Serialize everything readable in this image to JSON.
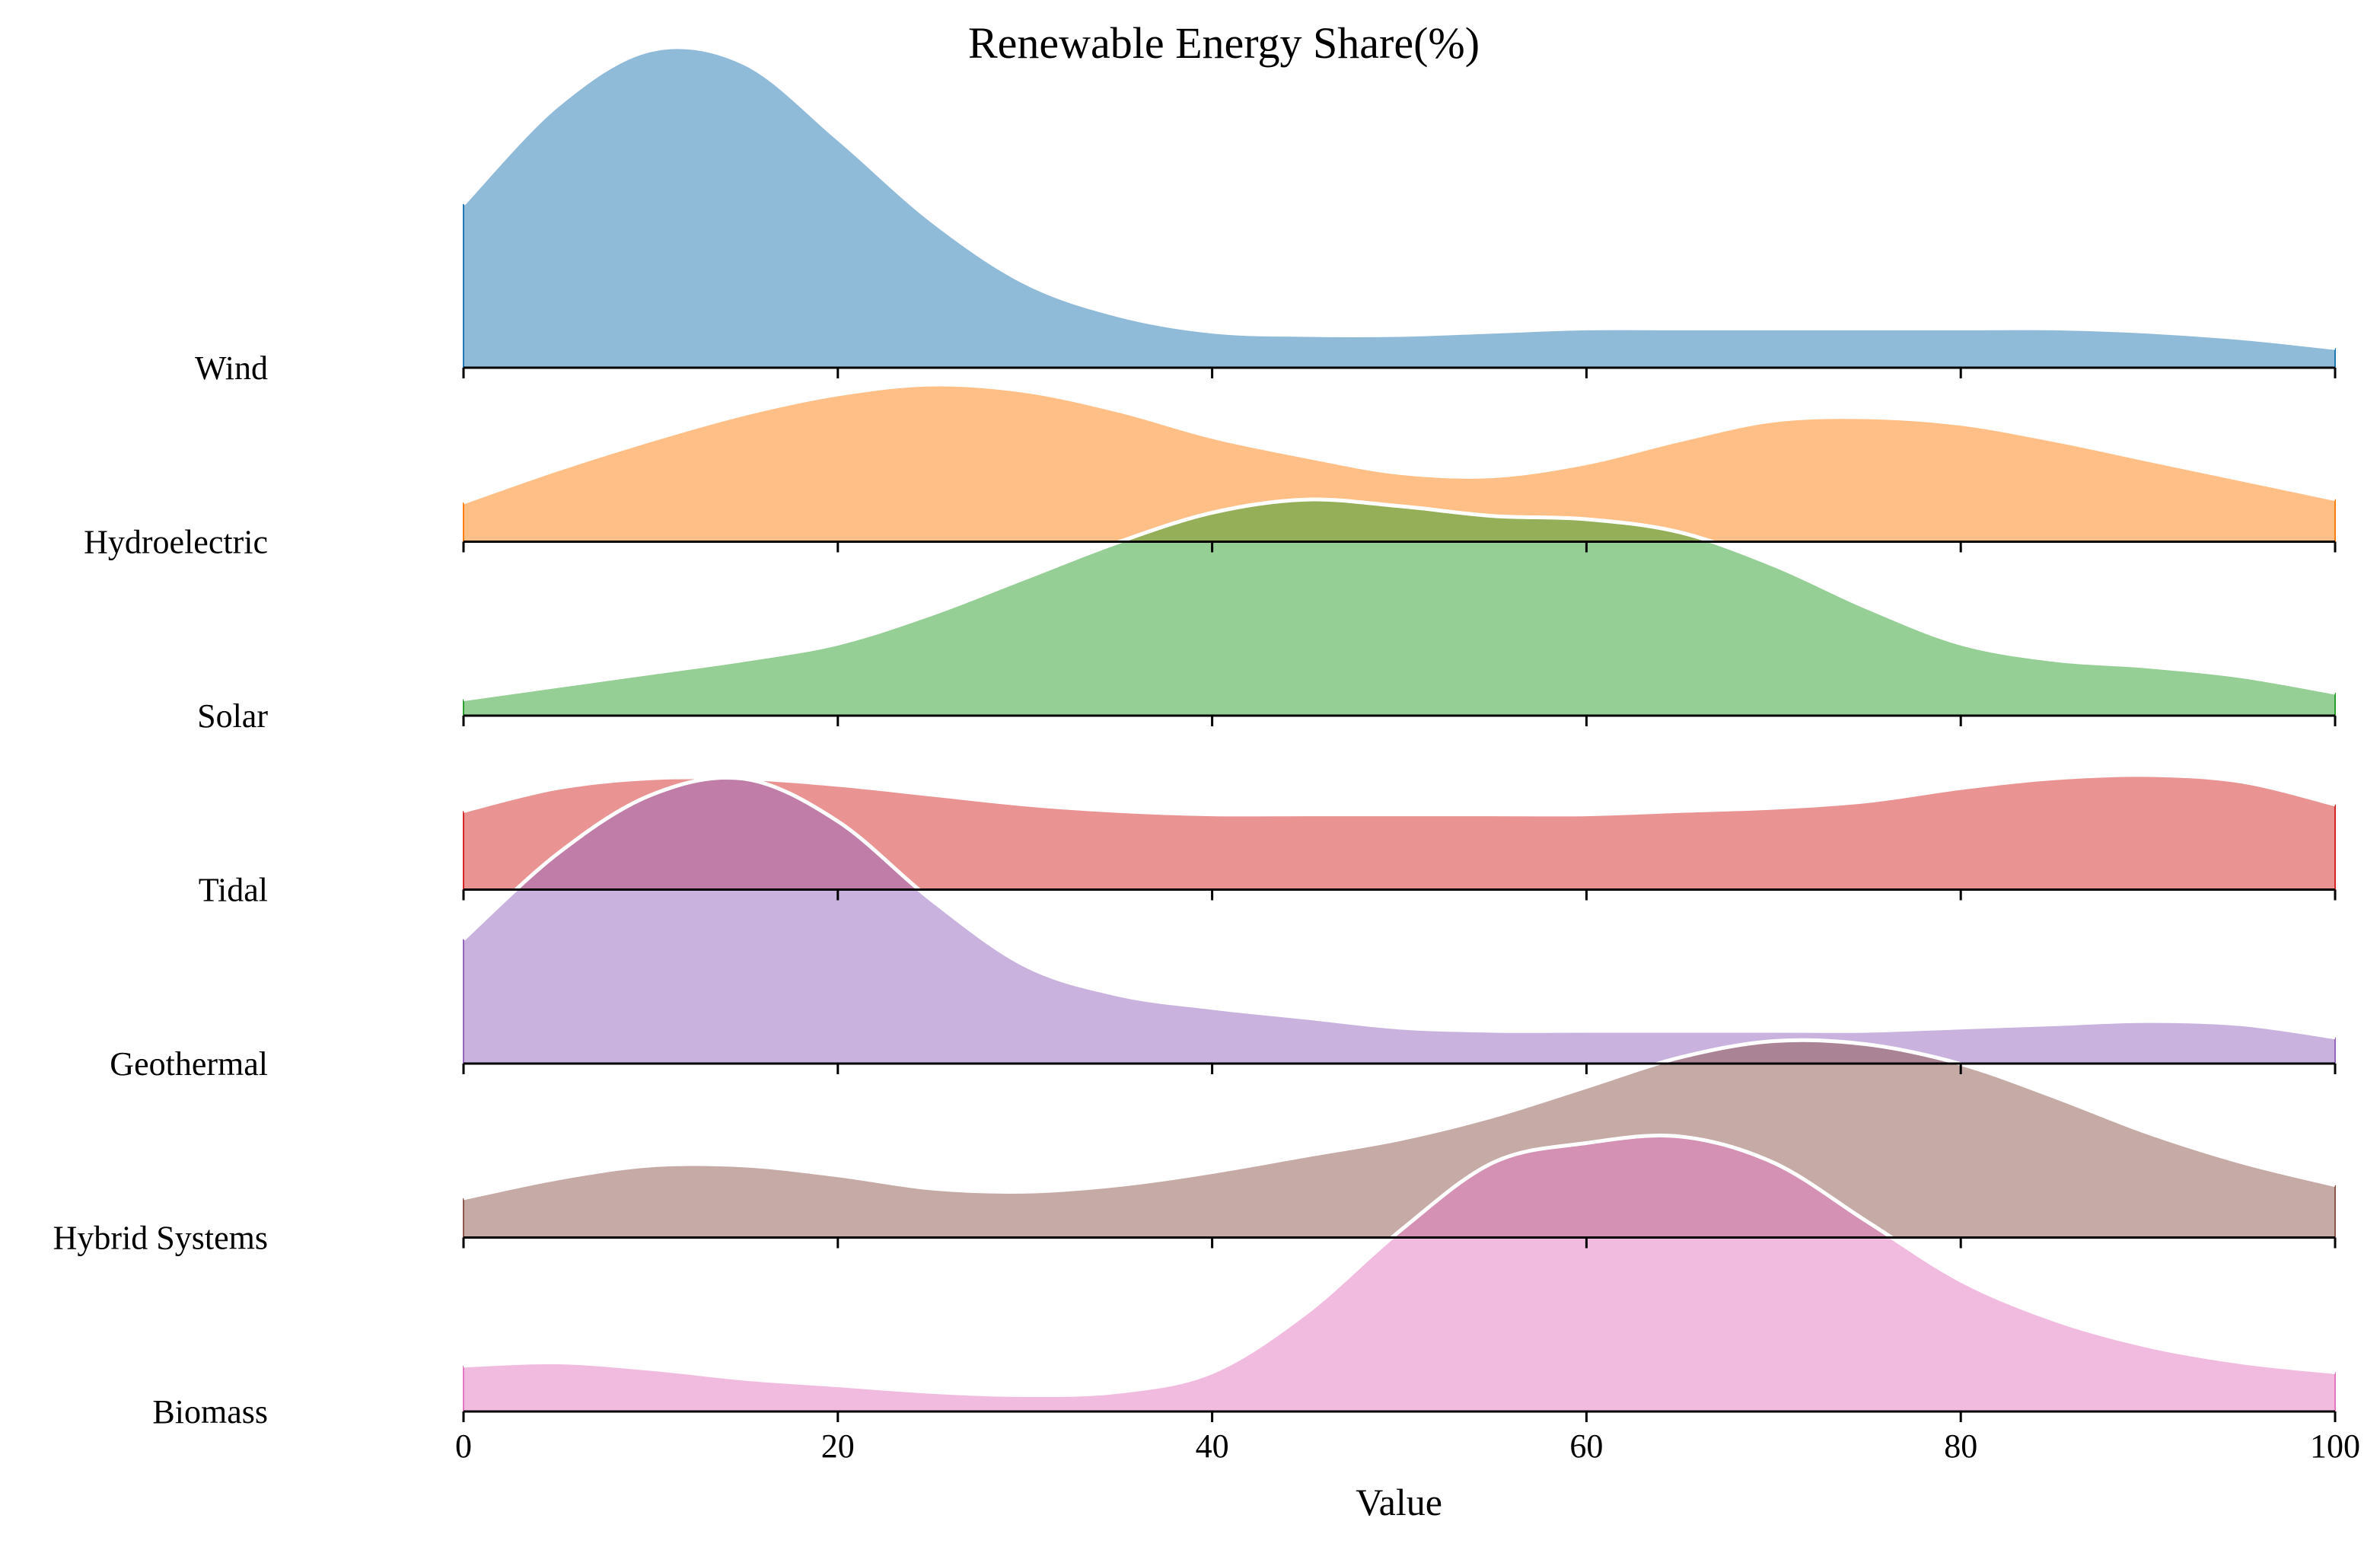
{
  "chart_data": {
    "type": "ridgeline",
    "title": "Renewable Energy Share(%)",
    "xlabel": "Value",
    "ylabel": "",
    "xlim": [
      0,
      100
    ],
    "xticks": [
      0,
      20,
      40,
      60,
      80,
      100
    ],
    "x": [
      0,
      5,
      10,
      15,
      20,
      25,
      30,
      35,
      40,
      45,
      50,
      55,
      60,
      65,
      70,
      75,
      80,
      85,
      90,
      95,
      100
    ],
    "series": [
      {
        "name": "Wind",
        "color": "#1f77b4",
        "values": [
          0.5,
          0.8,
          0.97,
          0.93,
          0.7,
          0.45,
          0.26,
          0.16,
          0.11,
          0.1,
          0.1,
          0.11,
          0.12,
          0.12,
          0.12,
          0.12,
          0.12,
          0.12,
          0.11,
          0.09,
          0.06
        ]
      },
      {
        "name": "Hydroelectric",
        "color": "#ff7f0e",
        "values": [
          0.12,
          0.22,
          0.31,
          0.39,
          0.45,
          0.48,
          0.46,
          0.4,
          0.32,
          0.26,
          0.21,
          0.2,
          0.24,
          0.31,
          0.37,
          0.38,
          0.36,
          0.31,
          0.25,
          0.19,
          0.13
        ]
      },
      {
        "name": "Solar",
        "color": "#2ca02c",
        "values": [
          0.05,
          0.09,
          0.13,
          0.17,
          0.22,
          0.31,
          0.42,
          0.53,
          0.62,
          0.66,
          0.64,
          0.61,
          0.6,
          0.56,
          0.46,
          0.33,
          0.22,
          0.17,
          0.15,
          0.12,
          0.07
        ]
      },
      {
        "name": "Tidal",
        "color": "#d62728",
        "values": [
          0.24,
          0.31,
          0.34,
          0.34,
          0.32,
          0.29,
          0.26,
          0.24,
          0.23,
          0.23,
          0.23,
          0.23,
          0.23,
          0.24,
          0.25,
          0.27,
          0.31,
          0.34,
          0.35,
          0.33,
          0.26
        ]
      },
      {
        "name": "Geothermal",
        "color": "#9467bd",
        "values": [
          0.38,
          0.64,
          0.82,
          0.87,
          0.74,
          0.5,
          0.3,
          0.21,
          0.17,
          0.14,
          0.11,
          0.1,
          0.1,
          0.1,
          0.1,
          0.1,
          0.11,
          0.12,
          0.13,
          0.12,
          0.08
        ]
      },
      {
        "name": "Hybrid Systems",
        "color": "#8c564b",
        "values": [
          0.12,
          0.18,
          0.22,
          0.22,
          0.19,
          0.15,
          0.14,
          0.16,
          0.2,
          0.25,
          0.3,
          0.37,
          0.46,
          0.55,
          0.6,
          0.59,
          0.53,
          0.43,
          0.32,
          0.23,
          0.16
        ]
      },
      {
        "name": "Biomass",
        "color": "#e377c2",
        "values": [
          0.14,
          0.15,
          0.13,
          0.1,
          0.08,
          0.06,
          0.05,
          0.06,
          0.12,
          0.3,
          0.55,
          0.76,
          0.82,
          0.84,
          0.76,
          0.58,
          0.4,
          0.28,
          0.2,
          0.15,
          0.12
        ]
      }
    ]
  }
}
